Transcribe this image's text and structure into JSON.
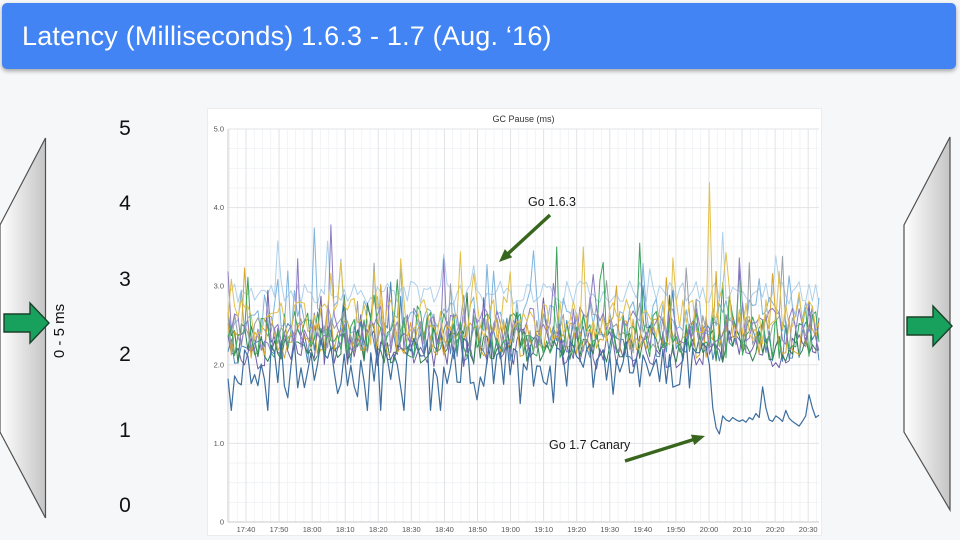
{
  "slide": {
    "bg": "#f6f7f8"
  },
  "header": {
    "title": "Latency (Milliseconds) 1.6.3 - 1.7 (Aug. ‘16)",
    "bg": "#4284f3",
    "text_color": "#ffffff"
  },
  "left_scale": {
    "labels": [
      "5",
      "4",
      "3",
      "2",
      "1",
      "0"
    ],
    "axis_label": "0 - 5 ms"
  },
  "decor": {
    "panel_gradient_start": "#ffffff",
    "panel_gradient_end": "#c5c5c5",
    "panel_stroke": "#4f4f4f",
    "arrow_fill": "#18a15d",
    "arrow_stroke": "#1b4029",
    "annotation_arrow_color": "#38661d"
  },
  "chart_data": {
    "type": "line",
    "title": "GC Pause (ms)",
    "xlabel": "",
    "ylabel": "",
    "ylim": [
      0,
      5
    ],
    "y_tick_labels": [
      "5.0",
      "4.0",
      "3.0",
      "2.0",
      "1.0",
      "0"
    ],
    "x_ticks": [
      "17:40",
      "17:50",
      "18:00",
      "18:10",
      "18:20",
      "18:30",
      "18:40",
      "18:50",
      "19:00",
      "19:10",
      "19:20",
      "19:30",
      "19:40",
      "19:50",
      "20:00",
      "20:10",
      "20:20",
      "20:30"
    ],
    "grid": true,
    "legend": "none",
    "annotations": [
      {
        "label": "Go 1.6.3"
      },
      {
        "label": "Go 1.7 Canary"
      }
    ],
    "series": [
      {
        "name": "pale-blue",
        "color": "#aed0ea",
        "mean": 2.92,
        "amp": 0.15,
        "spike_p": 0.06,
        "spike_amp": 0.55,
        "floor": 2.56,
        "seed": 11
      },
      {
        "name": "sky-blue",
        "color": "#7fb5dd",
        "mean": 2.6,
        "amp": 0.27,
        "spike_p": 0.05,
        "spike_amp": 0.8,
        "seed": 22
      },
      {
        "name": "steel-blue",
        "color": "#4a86b8",
        "mean": 2.3,
        "amp": 0.28,
        "spike_p": 0.04,
        "spike_amp": 0.6,
        "seed": 99
      },
      {
        "name": "violet",
        "color": "#6f5fa8",
        "mean": 2.2,
        "amp": 0.26,
        "spike_p": 0.03,
        "spike_amp": 0.5,
        "seed": 88
      },
      {
        "name": "dark-green",
        "color": "#2f7f4f",
        "mean": 2.26,
        "amp": 0.24,
        "spike_p": 0.03,
        "spike_amp": 0.5,
        "seed": 66
      },
      {
        "name": "amber",
        "color": "#d7a62f",
        "mean": 2.35,
        "amp": 0.27,
        "spike_p": 0.04,
        "spike_amp": 0.65,
        "seed": 44
      },
      {
        "name": "gray",
        "color": "#9aa0a6",
        "mean": 2.4,
        "amp": 0.25,
        "spike_p": 0.035,
        "spike_amp": 0.7,
        "seed": 111
      },
      {
        "name": "green",
        "color": "#3aa45c",
        "mean": 2.38,
        "amp": 0.3,
        "spike_p": 0.05,
        "spike_amp": 0.75,
        "seed": 55
      },
      {
        "name": "purple",
        "color": "#8e7cc3",
        "mean": 2.45,
        "amp": 0.3,
        "spike_p": 0.05,
        "spike_amp": 0.7,
        "seed": 77
      },
      {
        "name": "gold",
        "color": "#e3c04a",
        "mean": 2.55,
        "amp": 0.3,
        "spike_p": 0.06,
        "spike_amp": 0.65,
        "seed": 33
      }
    ],
    "canary_series": {
      "name": "go-1-7-canary",
      "color": "#3d6e9e",
      "seed": 131,
      "pre_drop_mean": 2.02,
      "pre_drop_amp": 0.32,
      "drop_time": "20:00",
      "post_drop_values": [
        2.0,
        1.45,
        1.2,
        1.12,
        1.35,
        1.3,
        1.28,
        1.33,
        1.3,
        1.28,
        1.3,
        1.27,
        1.33,
        1.3,
        1.38,
        1.33,
        1.72,
        1.45,
        1.3,
        1.28,
        1.35,
        1.32,
        1.28,
        1.42,
        1.32,
        1.28,
        1.25,
        1.22,
        1.28,
        1.35,
        1.62,
        1.45,
        1.33,
        1.36
      ]
    },
    "highlight_spikes": [
      {
        "series": "sky-blue",
        "time": "18:01",
        "value": 3.74
      },
      {
        "series": "purple",
        "time": "18:06",
        "value": 3.78
      },
      {
        "series": "gold",
        "time": "18:27",
        "value": 3.35
      },
      {
        "series": "sky-blue",
        "time": "19:07",
        "value": 3.45
      },
      {
        "series": "green",
        "time": "19:14",
        "value": 3.5
      },
      {
        "series": "gold",
        "time": "19:22",
        "value": 3.5
      },
      {
        "series": "purple",
        "time": "19:25",
        "value": 3.15
      },
      {
        "series": "green",
        "time": "19:39",
        "value": 3.55
      },
      {
        "series": "gold",
        "time": "20:00",
        "value": 4.32
      },
      {
        "series": "gray",
        "time": "20:12",
        "value": 3.3
      },
      {
        "series": "gray",
        "time": "20:22",
        "value": 3.38
      }
    ]
  }
}
